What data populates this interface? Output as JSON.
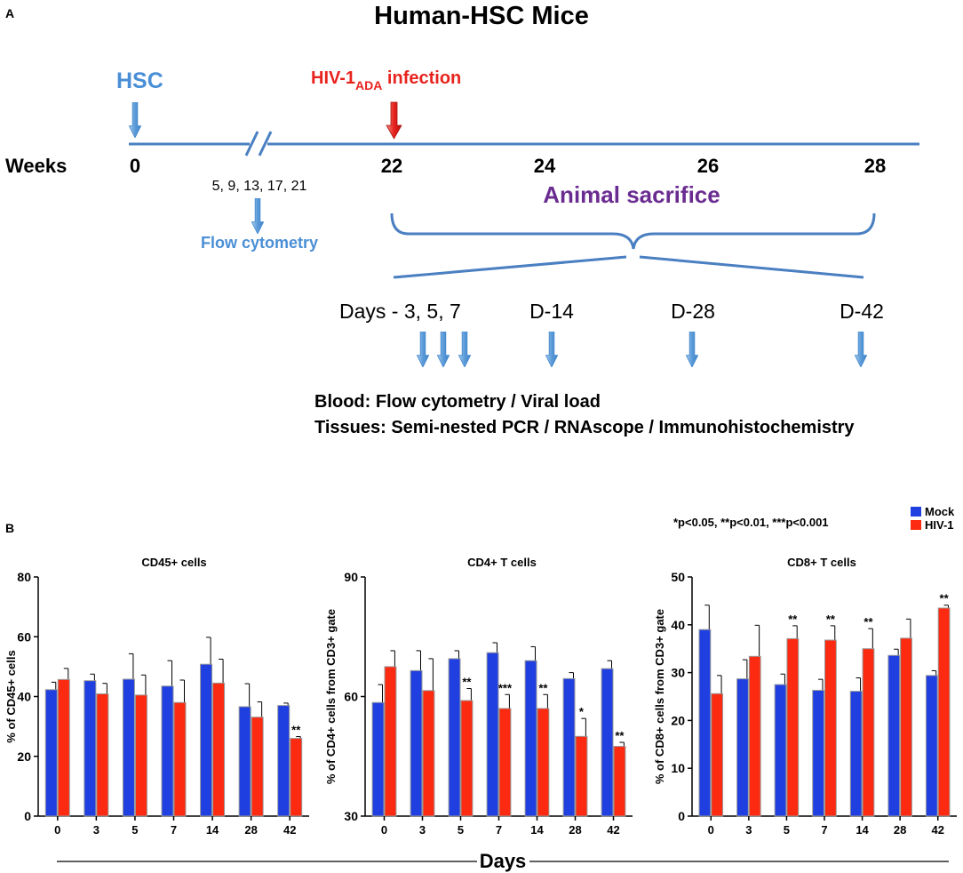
{
  "colors": {
    "hsc_blue": "#4a8fd6",
    "infection_red": "#e8231e",
    "sacrifice_purple": "#6b2c91",
    "timeline": "#4a7fc1",
    "arrow_light": "#a8cdee",
    "arrow_dark": "#3f86cc",
    "mock": "#1f3fe0",
    "hiv": "#fb2a10"
  },
  "panel_a": {
    "label": "A",
    "title": "Human-HSC Mice",
    "hsc_label": "HSC",
    "infection_label_prefix": "HIV-1",
    "infection_label_sub": "ADA",
    "infection_label_suffix": " infection",
    "weeks_label": "Weeks",
    "week_ticks": [
      "0",
      "22",
      "24",
      "26",
      "28"
    ],
    "flow_weeks": "5, 9, 13, 17, 21",
    "flow_label": "Flow cytometry",
    "sacrifice_label": "Animal sacrifice",
    "day_labels": [
      "Days - 3, 5, 7",
      "D-14",
      "D-28",
      "D-42"
    ],
    "blood_line": "Blood: Flow cytometry / Viral load",
    "tissue_line": "Tissues: Semi-nested PCR / RNAscope / Immunohistochemistry"
  },
  "panel_b": {
    "label": "B",
    "pvalue_note": "*p<0.05, **p<0.01, ***p<0.001",
    "legend": [
      "Mock",
      "HIV-1"
    ],
    "xlabel": "Days"
  },
  "chart_data": [
    {
      "type": "bar",
      "title": "CD45+ cells",
      "ylabel": "% of CD45+ cells",
      "xlabel": "Days",
      "categories": [
        "0",
        "3",
        "5",
        "7",
        "14",
        "28",
        "42"
      ],
      "ylim": [
        0,
        80
      ],
      "yticks": [
        0,
        20,
        40,
        60,
        80
      ],
      "series": [
        {
          "name": "Mock",
          "values": [
            42.3,
            45.3,
            45.8,
            43.5,
            50.8,
            36.6,
            37.0
          ],
          "errors": [
            2.5,
            2.2,
            8.5,
            8.5,
            9.0,
            7.7,
            0.8
          ]
        },
        {
          "name": "HIV-1",
          "values": [
            45.7,
            40.9,
            40.5,
            38.0,
            44.5,
            33.1,
            26.0
          ],
          "errors": [
            3.7,
            3.5,
            6.7,
            7.5,
            8.0,
            5.1,
            0.6
          ]
        }
      ],
      "significance": [
        "",
        "",
        "",
        "",
        "",
        "",
        "**"
      ]
    },
    {
      "type": "bar",
      "title": "CD4+ T cells",
      "ylabel": "% of CD4+ cells from CD3+ gate",
      "xlabel": "Days",
      "categories": [
        "0",
        "3",
        "5",
        "7",
        "14",
        "28",
        "42"
      ],
      "ylim": [
        30,
        90
      ],
      "yticks": [
        30,
        60,
        90
      ],
      "series": [
        {
          "name": "Mock",
          "values": [
            58.5,
            66.5,
            69.5,
            71.0,
            69.0,
            64.5,
            67.0
          ],
          "errors": [
            4.5,
            5.0,
            2.0,
            2.5,
            3.5,
            1.5,
            2.0
          ]
        },
        {
          "name": "HIV-1",
          "values": [
            67.5,
            61.5,
            59.0,
            57.0,
            57.0,
            50.0,
            47.5
          ],
          "errors": [
            4.0,
            8.0,
            3.0,
            3.5,
            3.5,
            4.5,
            1.0
          ]
        }
      ],
      "significance": [
        "",
        "",
        "**",
        "***",
        "**",
        "*",
        "**"
      ]
    },
    {
      "type": "bar",
      "title": "CD8+ T cells",
      "ylabel": "% of CD8+ cells from CD3+ gate",
      "xlabel": "Days",
      "categories": [
        "0",
        "3",
        "5",
        "7",
        "14",
        "28",
        "42"
      ],
      "ylim": [
        0,
        50
      ],
      "yticks": [
        0,
        10,
        20,
        30,
        40,
        50
      ],
      "series": [
        {
          "name": "Mock",
          "values": [
            39.0,
            28.7,
            27.5,
            26.3,
            26.1,
            33.6,
            29.4
          ],
          "errors": [
            5.1,
            4.0,
            2.2,
            2.3,
            2.8,
            1.3,
            1.0
          ]
        },
        {
          "name": "HIV-1",
          "values": [
            25.6,
            33.4,
            37.1,
            36.8,
            35.0,
            37.2,
            43.5
          ],
          "errors": [
            3.8,
            6.5,
            2.7,
            3.0,
            4.2,
            4.0,
            0.6
          ]
        }
      ],
      "significance": [
        "",
        "",
        "**",
        "**",
        "**",
        "",
        "**"
      ]
    }
  ]
}
